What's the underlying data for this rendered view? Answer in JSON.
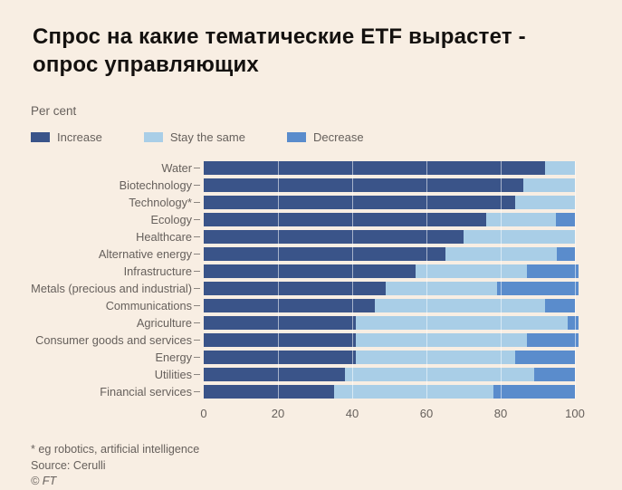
{
  "title": "Спрос на какие тематические ETF вырастет -\nопрос управляющих",
  "unit_label": "Per cent",
  "colors": {
    "background": "#f8eee3",
    "increase": "#3a5489",
    "stay_the_same": "#a9cee7",
    "decrease": "#5a8ccc",
    "text_muted": "#66605c",
    "title_text": "#14110f"
  },
  "chart_data": {
    "type": "bar",
    "orientation": "horizontal",
    "stacked": true,
    "title": "",
    "xlabel": "Per cent",
    "ylabel": "",
    "xlim": [
      0,
      100
    ],
    "xticks": [
      0,
      20,
      40,
      60,
      80,
      100
    ],
    "grid": "vertical-faint",
    "legend_position": "top",
    "categories": [
      "Water",
      "Biotechnology",
      "Technology*",
      "Ecology",
      "Healthcare",
      "Alternative energy",
      "Infrastructure",
      "Metals (precious and industrial)",
      "Communications",
      "Agriculture",
      "Consumer goods and services",
      "Energy",
      "Utilities",
      "Financial services"
    ],
    "series": [
      {
        "name": "Increase",
        "color": "#3a5489",
        "values": [
          92,
          86,
          84,
          76,
          70,
          65,
          57,
          49,
          46,
          41,
          41,
          41,
          38,
          35
        ]
      },
      {
        "name": "Stay the same",
        "color": "#a9cee7",
        "values": [
          8,
          14,
          16,
          19,
          30,
          30,
          30,
          30,
          46,
          57,
          46,
          43,
          51,
          43
        ]
      },
      {
        "name": "Decrease",
        "color": "#5a8ccc",
        "values": [
          0,
          0,
          0,
          5,
          0,
          5,
          14,
          22,
          8,
          3,
          14,
          16,
          11,
          22
        ]
      }
    ]
  },
  "footnotes": {
    "asterisk_note": "* eg robotics, artificial intelligence",
    "source": "Source: Cerulli",
    "copyright": "© FT"
  }
}
